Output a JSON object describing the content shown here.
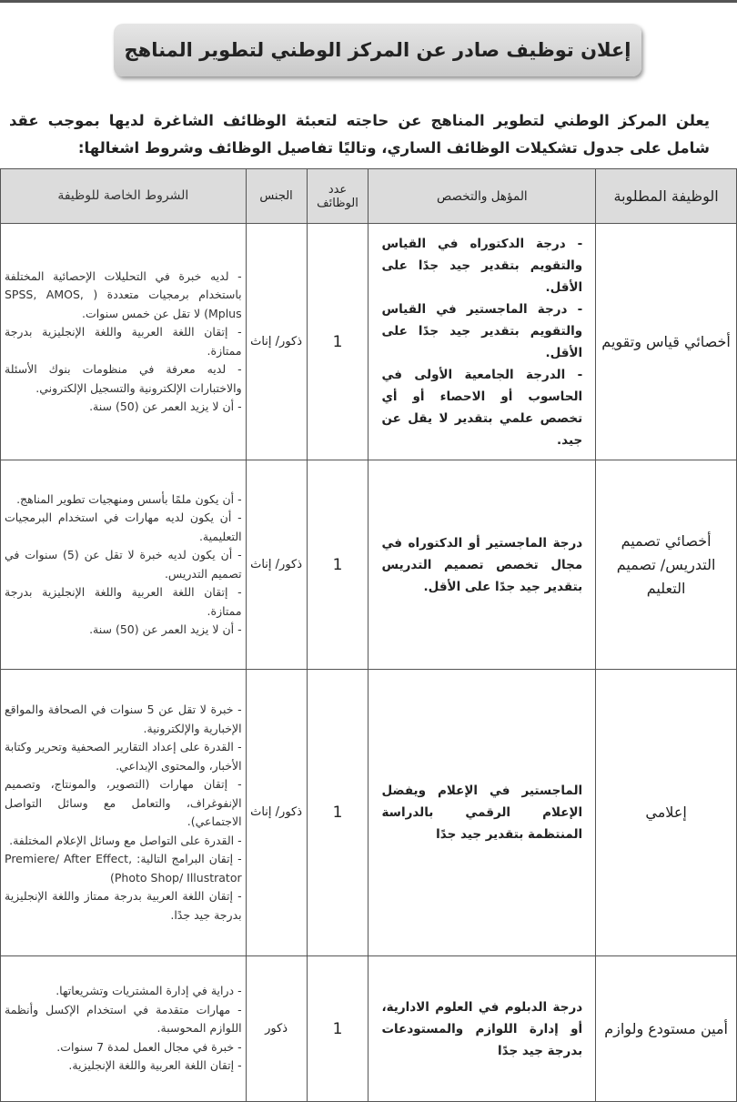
{
  "title": "إعلان توظيف صادر عن المركز الوطني لتطوير المناهج",
  "intro": "يعلن المركز الوطني لتطوير المناهج عن حاجته لتعبئة الوظائف الشاغرة لديها بموجب عقد شامل على جدول تشكيلات الوظائف الساري، وتاليًا تفاصيل الوظائف وشروط اشغالها:",
  "headers": {
    "job": "الوظيفة المطلوبة",
    "qualification": "المؤهل والتخصص",
    "count": "عدد الوظائف",
    "gender": "الجنس",
    "conditions": "الشروط الخاصة للوظيفة"
  },
  "rows": [
    {
      "job": "أخصائي قياس وتقويم",
      "qualification": [
        "- درجة الدكتوراه في القياس والتقويم بتقدير جيد جدًا على الأقل.",
        "- درجة الماجستير في القياس والتقويم بتقدير جيد جدًا على الأقل.",
        "- الدرجة الجامعية الأولى في الحاسوب أو الاحصاء أو أي تخصص علمي بتقدير لا يقل عن جيد."
      ],
      "count": "1",
      "gender": "ذكور/ إناث",
      "conditions": [
        "- لديه خبرة في التحليلات الإحصائية المختلفة باستخدام برمجيات متعددة ( SPSS, AMOS, Mplus) لا تقل عن خمس سنوات.",
        "- إتقان اللغة العربية واللغة الإنجليزية بدرجة ممتازة.",
        "- لديه معرفة في منظومات بنوك الأسئلة والاختبارات الإلكترونية والتسجيل الإلكتروني.",
        "- أن لا يزيد العمر عن (50) سنة."
      ]
    },
    {
      "job": "أخصائي تصميم التدريس/ تصميم التعليم",
      "qualification": [
        "درجة الماجستير أو الدكتوراه في مجال تخصص تصميم التدريس بتقدير جيد جدًا على الأقل."
      ],
      "count": "1",
      "gender": "ذكور/ إناث",
      "conditions": [
        "- أن يكون ملمًا بأسس ومنهجيات تطوير المناهج.",
        "- أن يكون لديه مهارات في استخدام البرمجيات التعليمية.",
        "- أن يكون لديه خبرة لا تقل عن (5) سنوات في تصميم التدريس.",
        "- إتقان اللغة العربية واللغة الإنجليزية بدرجة ممتازة.",
        "- أن لا يزيد العمر عن (50) سنة."
      ]
    },
    {
      "job": "إعلامي",
      "qualification": [
        "الماجستير في الإعلام ويفضل الإعلام الرقمي بالدراسة المنتظمة بتقدير جيد جدًا"
      ],
      "count": "1",
      "gender": "ذكور/ إناث",
      "conditions": [
        "- خبرة لا تقل عن 5 سنوات في الصحافة والمواقع الإخبارية والإلكترونية.",
        "- القدرة على إعداد التقارير الصحفية وتحرير وكتابة الأخبار، والمحتوى الإبداعي.",
        "- إتقان مهارات (التصوير، والمونتاج، وتصميم الإنفوغراف، والتعامل مع وسائل التواصل الاجتماعي).",
        "- القدرة على التواصل مع وسائل الإعلام المختلفة.",
        "- إتقان البرامج التالية: Premiere/ After Effect, Photo Shop/ Illustrator)",
        "- إتقان اللغة العربية بدرجة ممتاز واللغة الإنجليزية بدرجة جيد جدًا."
      ]
    },
    {
      "job": "أمين مستودع ولوازم",
      "qualification": [
        "درجة الدبلوم في العلوم الادارية، أو إدارة اللوازم والمستودعات بدرجة جيد جدًا"
      ],
      "count": "1",
      "gender": "ذكور",
      "conditions": [
        "- دراية في إدارة المشتريات وتشريعاتها.",
        "- مهارات متقدمة في استخدام الإكسل وأنظمة اللوازم المحوسبة.",
        "- خبرة في مجال العمل لمدة 7 سنوات.",
        "- إتقان اللغة العربية واللغة الإنجليزية."
      ]
    }
  ]
}
